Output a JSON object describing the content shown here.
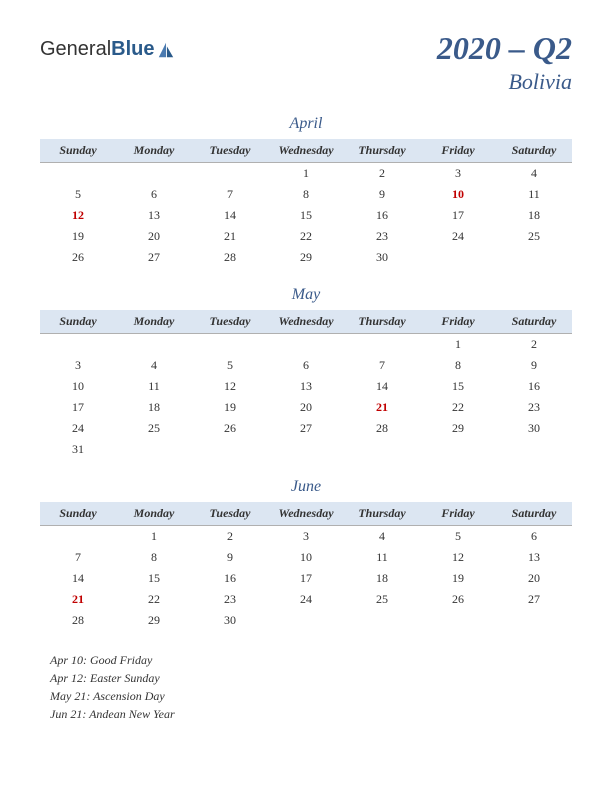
{
  "logo": {
    "text1": "General",
    "text2": "Blue"
  },
  "title": {
    "year_quarter": "2020 – Q2",
    "country": "Bolivia"
  },
  "day_headers": [
    "Sunday",
    "Monday",
    "Tuesday",
    "Wednesday",
    "Thursday",
    "Friday",
    "Saturday"
  ],
  "months": [
    {
      "name": "April",
      "weeks": [
        [
          {
            "d": ""
          },
          {
            "d": ""
          },
          {
            "d": ""
          },
          {
            "d": "1"
          },
          {
            "d": "2"
          },
          {
            "d": "3"
          },
          {
            "d": "4"
          }
        ],
        [
          {
            "d": "5"
          },
          {
            "d": "6"
          },
          {
            "d": "7"
          },
          {
            "d": "8"
          },
          {
            "d": "9"
          },
          {
            "d": "10",
            "h": true
          },
          {
            "d": "11"
          }
        ],
        [
          {
            "d": "12",
            "h": true
          },
          {
            "d": "13"
          },
          {
            "d": "14"
          },
          {
            "d": "15"
          },
          {
            "d": "16"
          },
          {
            "d": "17"
          },
          {
            "d": "18"
          }
        ],
        [
          {
            "d": "19"
          },
          {
            "d": "20"
          },
          {
            "d": "21"
          },
          {
            "d": "22"
          },
          {
            "d": "23"
          },
          {
            "d": "24"
          },
          {
            "d": "25"
          }
        ],
        [
          {
            "d": "26"
          },
          {
            "d": "27"
          },
          {
            "d": "28"
          },
          {
            "d": "29"
          },
          {
            "d": "30"
          },
          {
            "d": ""
          },
          {
            "d": ""
          }
        ]
      ]
    },
    {
      "name": "May",
      "weeks": [
        [
          {
            "d": ""
          },
          {
            "d": ""
          },
          {
            "d": ""
          },
          {
            "d": ""
          },
          {
            "d": ""
          },
          {
            "d": "1"
          },
          {
            "d": "2"
          }
        ],
        [
          {
            "d": "3"
          },
          {
            "d": "4"
          },
          {
            "d": "5"
          },
          {
            "d": "6"
          },
          {
            "d": "7"
          },
          {
            "d": "8"
          },
          {
            "d": "9"
          }
        ],
        [
          {
            "d": "10"
          },
          {
            "d": "11"
          },
          {
            "d": "12"
          },
          {
            "d": "13"
          },
          {
            "d": "14"
          },
          {
            "d": "15"
          },
          {
            "d": "16"
          }
        ],
        [
          {
            "d": "17"
          },
          {
            "d": "18"
          },
          {
            "d": "19"
          },
          {
            "d": "20"
          },
          {
            "d": "21",
            "h": true
          },
          {
            "d": "22"
          },
          {
            "d": "23"
          }
        ],
        [
          {
            "d": "24"
          },
          {
            "d": "25"
          },
          {
            "d": "26"
          },
          {
            "d": "27"
          },
          {
            "d": "28"
          },
          {
            "d": "29"
          },
          {
            "d": "30"
          }
        ],
        [
          {
            "d": "31"
          },
          {
            "d": ""
          },
          {
            "d": ""
          },
          {
            "d": ""
          },
          {
            "d": ""
          },
          {
            "d": ""
          },
          {
            "d": ""
          }
        ]
      ]
    },
    {
      "name": "June",
      "weeks": [
        [
          {
            "d": ""
          },
          {
            "d": "1"
          },
          {
            "d": "2"
          },
          {
            "d": "3"
          },
          {
            "d": "4"
          },
          {
            "d": "5"
          },
          {
            "d": "6"
          }
        ],
        [
          {
            "d": "7"
          },
          {
            "d": "8"
          },
          {
            "d": "9"
          },
          {
            "d": "10"
          },
          {
            "d": "11"
          },
          {
            "d": "12"
          },
          {
            "d": "13"
          }
        ],
        [
          {
            "d": "14"
          },
          {
            "d": "15"
          },
          {
            "d": "16"
          },
          {
            "d": "17"
          },
          {
            "d": "18"
          },
          {
            "d": "19"
          },
          {
            "d": "20"
          }
        ],
        [
          {
            "d": "21",
            "h": true
          },
          {
            "d": "22"
          },
          {
            "d": "23"
          },
          {
            "d": "24"
          },
          {
            "d": "25"
          },
          {
            "d": "26"
          },
          {
            "d": "27"
          }
        ],
        [
          {
            "d": "28"
          },
          {
            "d": "29"
          },
          {
            "d": "30"
          },
          {
            "d": ""
          },
          {
            "d": ""
          },
          {
            "d": ""
          },
          {
            "d": ""
          }
        ]
      ]
    }
  ],
  "holidays": [
    "Apr 10: Good Friday",
    "Apr 12: Easter Sunday",
    "May 21: Ascension Day",
    "Jun 21: Andean New Year"
  ],
  "colors": {
    "header_bg": "#dce6f2",
    "title_color": "#3a5a8a",
    "holiday_color": "#c00000",
    "text_color": "#333333"
  }
}
